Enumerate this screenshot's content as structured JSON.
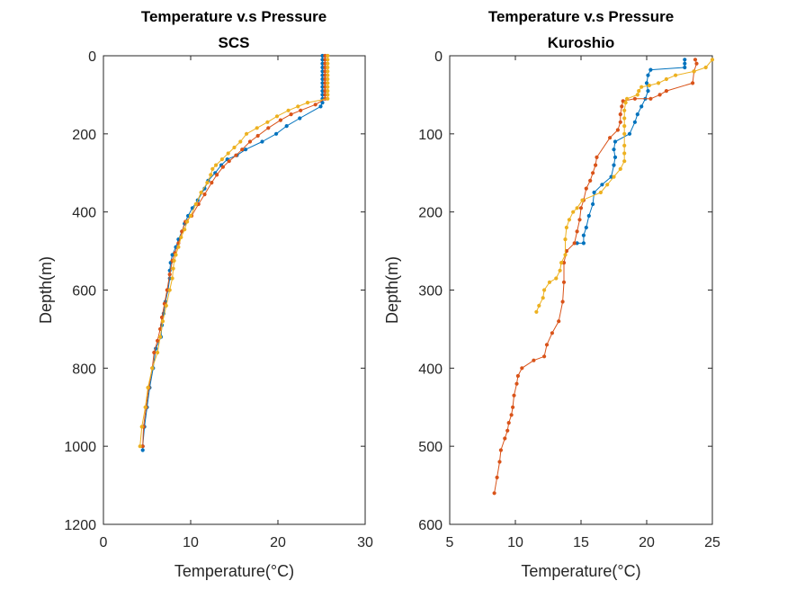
{
  "chart_data": [
    {
      "type": "line",
      "title": "Temperature v.s Pressure",
      "subtitle": "SCS",
      "xlabel": "Temperature(°C)",
      "ylabel": "Depth(m)",
      "xlim": [
        0,
        30
      ],
      "ylim": [
        0,
        1200
      ],
      "y_reversed": true,
      "xticks": [
        "0",
        "10",
        "20",
        "30"
      ],
      "yticks": [
        "0",
        "200",
        "400",
        "600",
        "800",
        "1000",
        "1200"
      ],
      "grid": false,
      "series": [
        {
          "color": "#0072BD",
          "points": [
            [
              25.1,
              0
            ],
            [
              25.1,
              10
            ],
            [
              25.1,
              20
            ],
            [
              25.1,
              30
            ],
            [
              25.1,
              40
            ],
            [
              25.1,
              50
            ],
            [
              25.1,
              60
            ],
            [
              25.1,
              70
            ],
            [
              25.1,
              80
            ],
            [
              25.1,
              90
            ],
            [
              25.1,
              100
            ],
            [
              25.1,
              110
            ],
            [
              25.1,
              120
            ],
            [
              24.9,
              130
            ],
            [
              22.5,
              160
            ],
            [
              21.0,
              180
            ],
            [
              19.8,
              200
            ],
            [
              18.2,
              220
            ],
            [
              16.3,
              240
            ],
            [
              15.3,
              255
            ],
            [
              14.2,
              265
            ],
            [
              13.5,
              280
            ],
            [
              12.8,
              300
            ],
            [
              12.0,
              320
            ],
            [
              11.6,
              340
            ],
            [
              10.8,
              370
            ],
            [
              10.2,
              390
            ],
            [
              9.7,
              410
            ],
            [
              9.3,
              430
            ],
            [
              9.0,
              450
            ],
            [
              8.6,
              470
            ],
            [
              8.3,
              490
            ],
            [
              7.9,
              510
            ],
            [
              7.7,
              530
            ],
            [
              7.6,
              550
            ],
            [
              7.6,
              570
            ],
            [
              7.4,
              600
            ],
            [
              7.1,
              630
            ],
            [
              6.9,
              660
            ],
            [
              6.7,
              690
            ],
            [
              6.6,
              720
            ],
            [
              6.0,
              750
            ],
            [
              5.7,
              800
            ],
            [
              5.3,
              850
            ],
            [
              5.0,
              900
            ],
            [
              4.7,
              950
            ],
            [
              4.5,
              1000
            ],
            [
              4.5,
              1010
            ]
          ]
        },
        {
          "color": "#D95319",
          "points": [
            [
              25.4,
              0
            ],
            [
              25.4,
              10
            ],
            [
              25.4,
              20
            ],
            [
              25.4,
              30
            ],
            [
              25.4,
              40
            ],
            [
              25.4,
              50
            ],
            [
              25.4,
              60
            ],
            [
              25.4,
              70
            ],
            [
              25.4,
              80
            ],
            [
              25.4,
              90
            ],
            [
              25.4,
              100
            ],
            [
              25.4,
              110
            ],
            [
              24.3,
              125
            ],
            [
              22.6,
              140
            ],
            [
              21.5,
              150
            ],
            [
              20.3,
              165
            ],
            [
              18.9,
              185
            ],
            [
              17.7,
              205
            ],
            [
              16.8,
              220
            ],
            [
              15.9,
              240
            ],
            [
              15.2,
              255
            ],
            [
              14.4,
              270
            ],
            [
              13.7,
              285
            ],
            [
              13.0,
              305
            ],
            [
              12.4,
              325
            ],
            [
              11.6,
              355
            ],
            [
              10.9,
              380
            ],
            [
              10.1,
              410
            ],
            [
              9.4,
              425
            ],
            [
              9.0,
              450
            ],
            [
              8.6,
              480
            ],
            [
              8.2,
              505
            ],
            [
              7.9,
              525
            ],
            [
              7.6,
              560
            ],
            [
              7.3,
              600
            ],
            [
              7.0,
              635
            ],
            [
              6.7,
              670
            ],
            [
              6.5,
              700
            ],
            [
              6.2,
              730
            ],
            [
              5.8,
              760
            ],
            [
              5.6,
              800
            ],
            [
              5.2,
              850
            ],
            [
              4.9,
              900
            ],
            [
              4.6,
              950
            ],
            [
              4.5,
              1000
            ]
          ]
        },
        {
          "color": "#EDB120",
          "points": [
            [
              25.7,
              0
            ],
            [
              25.7,
              10
            ],
            [
              25.7,
              20
            ],
            [
              25.7,
              30
            ],
            [
              25.7,
              40
            ],
            [
              25.7,
              50
            ],
            [
              25.7,
              60
            ],
            [
              25.7,
              70
            ],
            [
              25.7,
              80
            ],
            [
              25.7,
              90
            ],
            [
              25.7,
              100
            ],
            [
              25.7,
              110
            ],
            [
              23.4,
              120
            ],
            [
              22.3,
              130
            ],
            [
              21.2,
              140
            ],
            [
              19.9,
              155
            ],
            [
              18.8,
              170
            ],
            [
              17.6,
              185
            ],
            [
              16.4,
              200
            ],
            [
              15.7,
              220
            ],
            [
              15.0,
              235
            ],
            [
              14.3,
              250
            ],
            [
              13.6,
              265
            ],
            [
              12.9,
              280
            ],
            [
              12.5,
              290
            ],
            [
              12.3,
              305
            ],
            [
              11.9,
              325
            ],
            [
              11.2,
              350
            ],
            [
              10.6,
              380
            ],
            [
              10.0,
              410
            ],
            [
              9.6,
              425
            ],
            [
              9.3,
              445
            ],
            [
              8.9,
              465
            ],
            [
              8.6,
              490
            ],
            [
              8.3,
              510
            ],
            [
              8.1,
              525
            ],
            [
              8.0,
              545
            ],
            [
              7.9,
              570
            ],
            [
              7.6,
              600
            ],
            [
              7.2,
              640
            ],
            [
              6.8,
              680
            ],
            [
              6.5,
              720
            ],
            [
              6.2,
              760
            ],
            [
              5.6,
              800
            ],
            [
              5.1,
              850
            ],
            [
              4.8,
              900
            ],
            [
              4.4,
              950
            ],
            [
              4.2,
              1000
            ]
          ]
        }
      ]
    },
    {
      "type": "line",
      "title": "Temperature v.s Pressure",
      "subtitle": "Kuroshio",
      "xlabel": "Temperature(°C)",
      "ylabel": "Depth(m)",
      "xlim": [
        5,
        25
      ],
      "ylim": [
        0,
        600
      ],
      "y_reversed": true,
      "xticks": [
        "5",
        "10",
        "15",
        "20",
        "25"
      ],
      "yticks": [
        "0",
        "100",
        "200",
        "300",
        "400",
        "500",
        "600"
      ],
      "grid": false,
      "series": [
        {
          "color": "#0072BD",
          "points": [
            [
              22.9,
              5
            ],
            [
              22.9,
              10
            ],
            [
              22.9,
              15
            ],
            [
              20.3,
              18
            ],
            [
              20.1,
              25
            ],
            [
              20.0,
              35
            ],
            [
              20.1,
              45
            ],
            [
              19.9,
              55
            ],
            [
              19.6,
              65
            ],
            [
              19.3,
              75
            ],
            [
              19.1,
              85
            ],
            [
              18.7,
              100
            ],
            [
              17.6,
              110
            ],
            [
              17.5,
              120
            ],
            [
              17.6,
              130
            ],
            [
              17.5,
              140
            ],
            [
              17.3,
              155
            ],
            [
              16.6,
              165
            ],
            [
              16.0,
              175
            ],
            [
              15.9,
              190
            ],
            [
              15.6,
              205
            ],
            [
              15.4,
              220
            ],
            [
              15.2,
              230
            ],
            [
              15.2,
              240
            ],
            [
              14.7,
              240
            ]
          ]
        },
        {
          "color": "#D95319",
          "points": [
            [
              23.7,
              5
            ],
            [
              23.8,
              10
            ],
            [
              23.6,
              20
            ],
            [
              23.5,
              35
            ],
            [
              21.5,
              45
            ],
            [
              21.0,
              50
            ],
            [
              20.3,
              55
            ],
            [
              19.1,
              55
            ],
            [
              18.2,
              58
            ],
            [
              18.1,
              65
            ],
            [
              18.0,
              75
            ],
            [
              18.0,
              85
            ],
            [
              17.8,
              95
            ],
            [
              17.2,
              105
            ],
            [
              16.2,
              130
            ],
            [
              16.1,
              140
            ],
            [
              15.9,
              150
            ],
            [
              15.7,
              160
            ],
            [
              15.4,
              170
            ],
            [
              15.2,
              185
            ],
            [
              15.0,
              195
            ],
            [
              14.9,
              210
            ],
            [
              14.7,
              225
            ],
            [
              14.5,
              240
            ],
            [
              13.9,
              250
            ],
            [
              13.7,
              265
            ],
            [
              13.7,
              290
            ],
            [
              13.6,
              315
            ],
            [
              13.3,
              340
            ],
            [
              12.8,
              355
            ],
            [
              12.4,
              370
            ],
            [
              12.2,
              385
            ],
            [
              11.4,
              390
            ],
            [
              10.5,
              400
            ],
            [
              10.2,
              410
            ],
            [
              10.1,
              420
            ],
            [
              9.9,
              435
            ],
            [
              9.8,
              450
            ],
            [
              9.7,
              460
            ],
            [
              9.5,
              470
            ],
            [
              9.4,
              480
            ],
            [
              9.2,
              490
            ],
            [
              8.9,
              505
            ],
            [
              8.8,
              520
            ],
            [
              8.6,
              540
            ],
            [
              8.4,
              560
            ]
          ]
        },
        {
          "color": "#EDB120",
          "points": [
            [
              25.0,
              5
            ],
            [
              24.5,
              15
            ],
            [
              23.6,
              20
            ],
            [
              22.2,
              25
            ],
            [
              21.5,
              30
            ],
            [
              20.9,
              35
            ],
            [
              20.2,
              38
            ],
            [
              19.6,
              40
            ],
            [
              19.4,
              45
            ],
            [
              19.3,
              50
            ],
            [
              18.5,
              55
            ],
            [
              18.4,
              60
            ],
            [
              18.3,
              70
            ],
            [
              18.3,
              80
            ],
            [
              18.3,
              90
            ],
            [
              18.3,
              100
            ],
            [
              18.3,
              115
            ],
            [
              18.3,
              125
            ],
            [
              18.3,
              135
            ],
            [
              18.0,
              145
            ],
            [
              17.5,
              155
            ],
            [
              17.0,
              165
            ],
            [
              16.5,
              175
            ],
            [
              15.1,
              185
            ],
            [
              14.7,
              195
            ],
            [
              14.4,
              200
            ],
            [
              14.1,
              210
            ],
            [
              13.9,
              220
            ],
            [
              13.8,
              235
            ],
            [
              13.8,
              255
            ],
            [
              13.5,
              265
            ],
            [
              13.4,
              275
            ],
            [
              13.1,
              285
            ],
            [
              12.6,
              290
            ],
            [
              12.2,
              300
            ],
            [
              12.1,
              310
            ],
            [
              11.8,
              320
            ],
            [
              11.6,
              328
            ]
          ]
        }
      ]
    }
  ]
}
